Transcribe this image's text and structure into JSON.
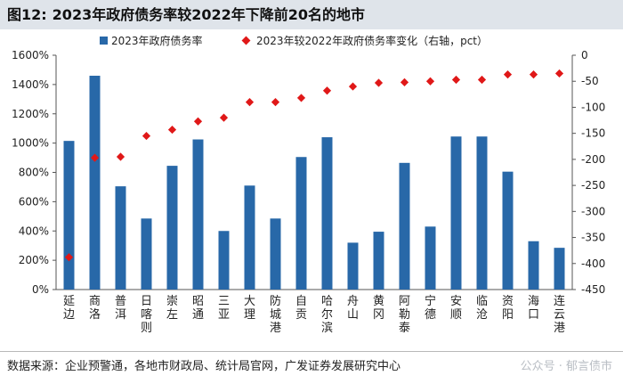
{
  "header": {
    "figure_no": "图12:",
    "title": "2023年政府债务率较2022年下降前20名的地市"
  },
  "chart_data": {
    "type": "bar+scatter",
    "title": "2023年政府债务率较2022年下降前20名的地市",
    "categories": [
      "延边",
      "商洛",
      "普洱",
      "日喀则",
      "崇左",
      "昭通",
      "三亚",
      "大理",
      "防城港",
      "自贡",
      "哈尔滨",
      "舟山",
      "黄冈",
      "阿勒泰",
      "宁德",
      "安顺",
      "临沧",
      "资阳",
      "海口",
      "连云港"
    ],
    "series": [
      {
        "name": "2023年政府债务率",
        "type": "bar",
        "axis": "left",
        "color": "#2868a8",
        "values": [
          1015,
          1460,
          705,
          485,
          845,
          1025,
          400,
          710,
          485,
          905,
          1040,
          320,
          395,
          865,
          430,
          1045,
          1045,
          805,
          330,
          285
        ]
      },
      {
        "name": "2023年较2022年政府债务率变化（右轴，pct）",
        "type": "scatter",
        "axis": "right",
        "color": "#e01818",
        "values": [
          -388,
          -197,
          -195,
          -155,
          -143,
          -127,
          -120,
          -90,
          -90,
          -82,
          -68,
          -60,
          -53,
          -52,
          -50,
          -47,
          -47,
          -37,
          -37,
          -35
        ]
      }
    ],
    "left_axis": {
      "ylim": [
        0,
        1600
      ],
      "step": 200,
      "format": "percent",
      "ticks": [
        "0%",
        "200%",
        "400%",
        "600%",
        "800%",
        "1000%",
        "1200%",
        "1400%",
        "1600%"
      ]
    },
    "right_axis": {
      "ylim": [
        -450,
        0
      ],
      "step": 50,
      "ticks": [
        "0",
        "-50",
        "-100",
        "-150",
        "-200",
        "-250",
        "-300",
        "-350",
        "-400",
        "-450"
      ]
    },
    "legend_position": "top"
  },
  "footer": {
    "source": "数据来源：企业预警通，各地市财政局、统计局官网，广发证券发展研究中心",
    "watermark": "公众号 · 郁言债市"
  }
}
